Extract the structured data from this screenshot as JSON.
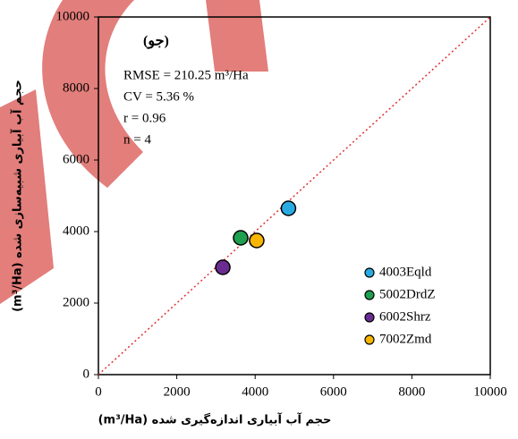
{
  "chart_data": {
    "type": "scatter",
    "xlabel": "حجم آب آبیاری اندازه‌گیری شده (m³/Ha)",
    "ylabel": "حجم آب آبیاری شبیه‌سازی شده (m³/Ha)",
    "annotations": [
      "(جو)",
      "RMSE = 210.25 m³/Ha",
      "CV = 5.36 %",
      "r = 0.96",
      "n = 4"
    ],
    "series": [
      {
        "name": "4003Eqld",
        "color": "#29abe2",
        "x": [
          4850
        ],
        "values": [
          4650
        ]
      },
      {
        "name": "5002DrdZ",
        "color": "#1fa050",
        "x": [
          3630
        ],
        "values": [
          3825
        ]
      },
      {
        "name": "6002Shrz",
        "color": "#6a2c91",
        "x": [
          3175
        ],
        "values": [
          3000
        ]
      },
      {
        "name": "7002Zmd",
        "color": "#f7b500",
        "x": [
          4040
        ],
        "values": [
          3750
        ]
      }
    ],
    "xlim": [
      0,
      10000
    ],
    "ylim": [
      0,
      10000
    ],
    "xticks": [
      0,
      2000,
      4000,
      6000,
      8000,
      10000
    ],
    "yticks": [
      0,
      2000,
      4000,
      6000,
      8000,
      10000
    ],
    "legend": "lower right"
  }
}
